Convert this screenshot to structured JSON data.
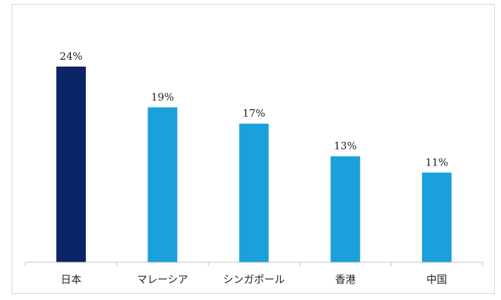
{
  "chart_data": {
    "type": "bar",
    "title": "",
    "xlabel": "",
    "ylabel": "",
    "categories": [
      "日本",
      "マレーシア",
      "シンガポール",
      "香港",
      "中国"
    ],
    "values": [
      24,
      19,
      17,
      13,
      11
    ],
    "data_labels": [
      "24%",
      "19%",
      "17%",
      "13%",
      "11%"
    ],
    "unit": "%",
    "ylim": [
      0,
      24
    ],
    "grid": false,
    "legend": "none",
    "colors": [
      "#0c2566",
      "#1aa0db",
      "#1aa0db",
      "#1aa0db",
      "#1aa0db"
    ],
    "axis_color": "#bfbfbf"
  }
}
